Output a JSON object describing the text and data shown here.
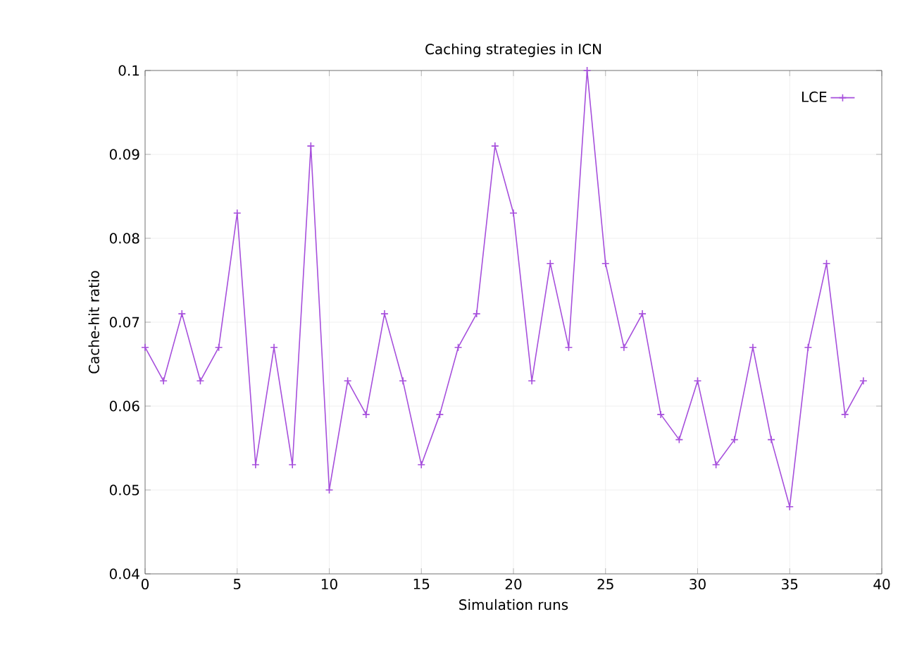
{
  "chart_data": {
    "type": "line",
    "title": "Caching strategies in ICN",
    "xlabel": "Simulation runs",
    "ylabel": "Cache-hit ratio",
    "x": [
      0,
      1,
      2,
      3,
      4,
      5,
      6,
      7,
      8,
      9,
      10,
      11,
      12,
      13,
      14,
      15,
      16,
      17,
      18,
      19,
      20,
      21,
      22,
      23,
      24,
      25,
      26,
      27,
      28,
      29,
      30,
      31,
      32,
      33,
      34,
      35,
      36,
      37,
      38,
      39
    ],
    "series": [
      {
        "name": "LCE",
        "color": "#a64fdc",
        "values": [
          0.067,
          0.063,
          0.071,
          0.063,
          0.067,
          0.083,
          0.053,
          0.067,
          0.053,
          0.091,
          0.05,
          0.063,
          0.059,
          0.071,
          0.063,
          0.053,
          0.059,
          0.067,
          0.071,
          0.091,
          0.083,
          0.063,
          0.077,
          0.067,
          0.1,
          0.077,
          0.067,
          0.071,
          0.059,
          0.056,
          0.063,
          0.053,
          0.056,
          0.067,
          0.056,
          0.048,
          0.067,
          0.077,
          0.059,
          0.063
        ]
      }
    ],
    "xlim": [
      0,
      40
    ],
    "ylim": [
      0.04,
      0.1
    ],
    "xticks": [
      0,
      5,
      10,
      15,
      20,
      25,
      30,
      35,
      40
    ],
    "yticks": [
      0.04,
      0.05,
      0.06,
      0.07,
      0.08,
      0.09,
      0.1
    ],
    "grid": true,
    "legend": "top right",
    "marker": "cross",
    "line_style": "solid"
  }
}
